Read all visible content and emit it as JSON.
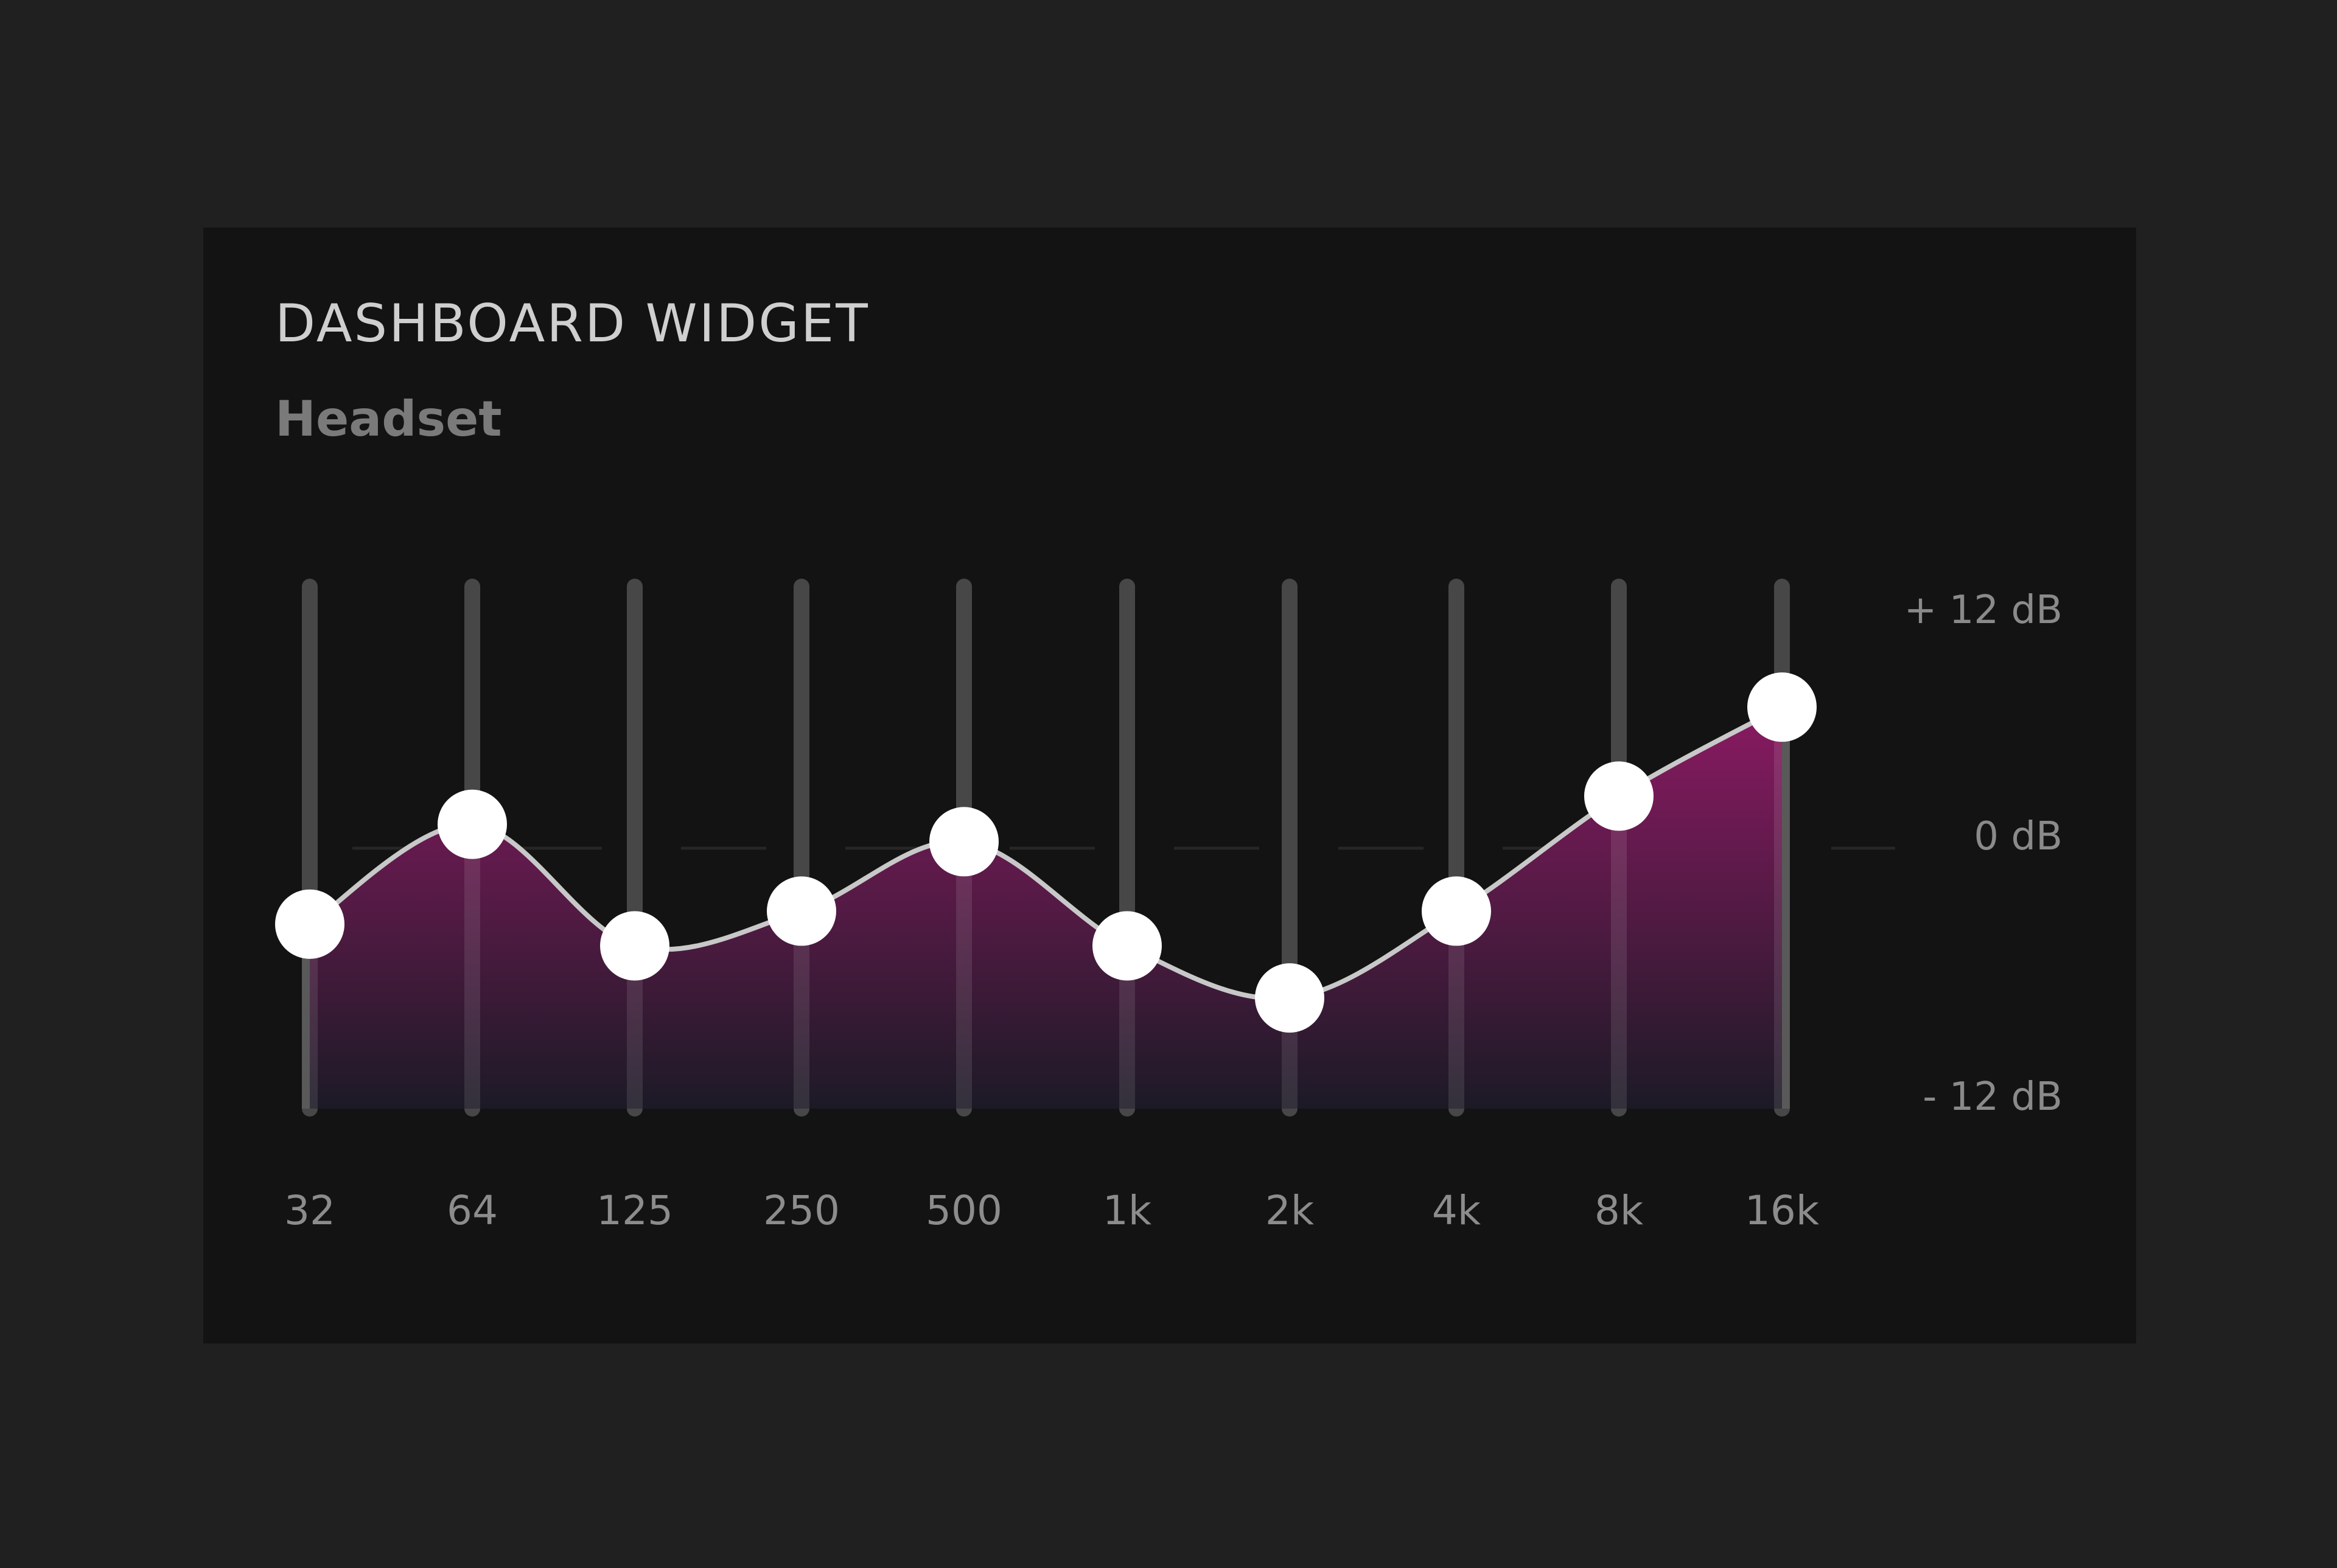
{
  "widget": {
    "title": "DASHBOARD WIDGET",
    "subtitle": "Headset"
  },
  "equalizer": {
    "db_labels": {
      "max": "+ 12 dB",
      "zero": "0 dB",
      "min": "- 12 dB"
    },
    "range_db": [
      -12,
      12
    ],
    "bands": [
      {
        "label": "32",
        "gain_db": -3.5
      },
      {
        "label": "64",
        "gain_db": 1.1
      },
      {
        "label": "125",
        "gain_db": -4.5
      },
      {
        "label": "250",
        "gain_db": -2.9
      },
      {
        "label": "500",
        "gain_db": 0.3
      },
      {
        "label": "1k",
        "gain_db": -4.5
      },
      {
        "label": "2k",
        "gain_db": -6.9
      },
      {
        "label": "4k",
        "gain_db": -2.9
      },
      {
        "label": "8k",
        "gain_db": 2.4
      },
      {
        "label": "16k",
        "gain_db": 6.5
      }
    ],
    "colors": {
      "fill_top": "#8a1a62",
      "fill_bottom": "#1c1a26",
      "curve": "#c8c8c8",
      "handle": "#ffffff",
      "track": "#474747"
    }
  }
}
